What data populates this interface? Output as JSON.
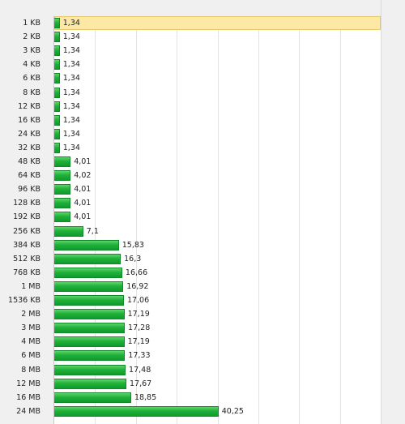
{
  "chart_data": {
    "type": "bar",
    "orientation": "horizontal",
    "categories": [
      "1 KB",
      "2 KB",
      "3 KB",
      "4 KB",
      "6 KB",
      "8 KB",
      "12 KB",
      "16 KB",
      "24 KB",
      "32 KB",
      "48 KB",
      "64 KB",
      "96 KB",
      "128 KB",
      "192 KB",
      "256 KB",
      "384 KB",
      "512 KB",
      "768 KB",
      "1 MB",
      "1536 KB",
      "2 MB",
      "3 MB",
      "4 MB",
      "6 MB",
      "8 MB",
      "12 MB",
      "16 MB",
      "24 MB"
    ],
    "values": [
      1.34,
      1.34,
      1.34,
      1.34,
      1.34,
      1.34,
      1.34,
      1.34,
      1.34,
      1.34,
      4.01,
      4.02,
      4.01,
      4.01,
      4.01,
      7.1,
      15.83,
      16.3,
      16.66,
      16.92,
      17.06,
      17.19,
      17.28,
      17.19,
      17.33,
      17.48,
      17.67,
      18.85,
      40.25
    ],
    "value_labels": [
      "1,34",
      "1,34",
      "1,34",
      "1,34",
      "1,34",
      "1,34",
      "1,34",
      "1,34",
      "1,34",
      "1,34",
      "4,01",
      "4,02",
      "4,01",
      "4,01",
      "4,01",
      "7,1",
      "15,83",
      "16,3",
      "16,66",
      "16,92",
      "17,06",
      "17,19",
      "17,28",
      "17,19",
      "17,33",
      "17,48",
      "17,67",
      "18,85",
      "40,25"
    ],
    "xlim": [
      0,
      80
    ],
    "grid": true,
    "highlighted_index": 0,
    "bar_color": "#1fb13a",
    "highlight_color": "#fde9a4"
  }
}
